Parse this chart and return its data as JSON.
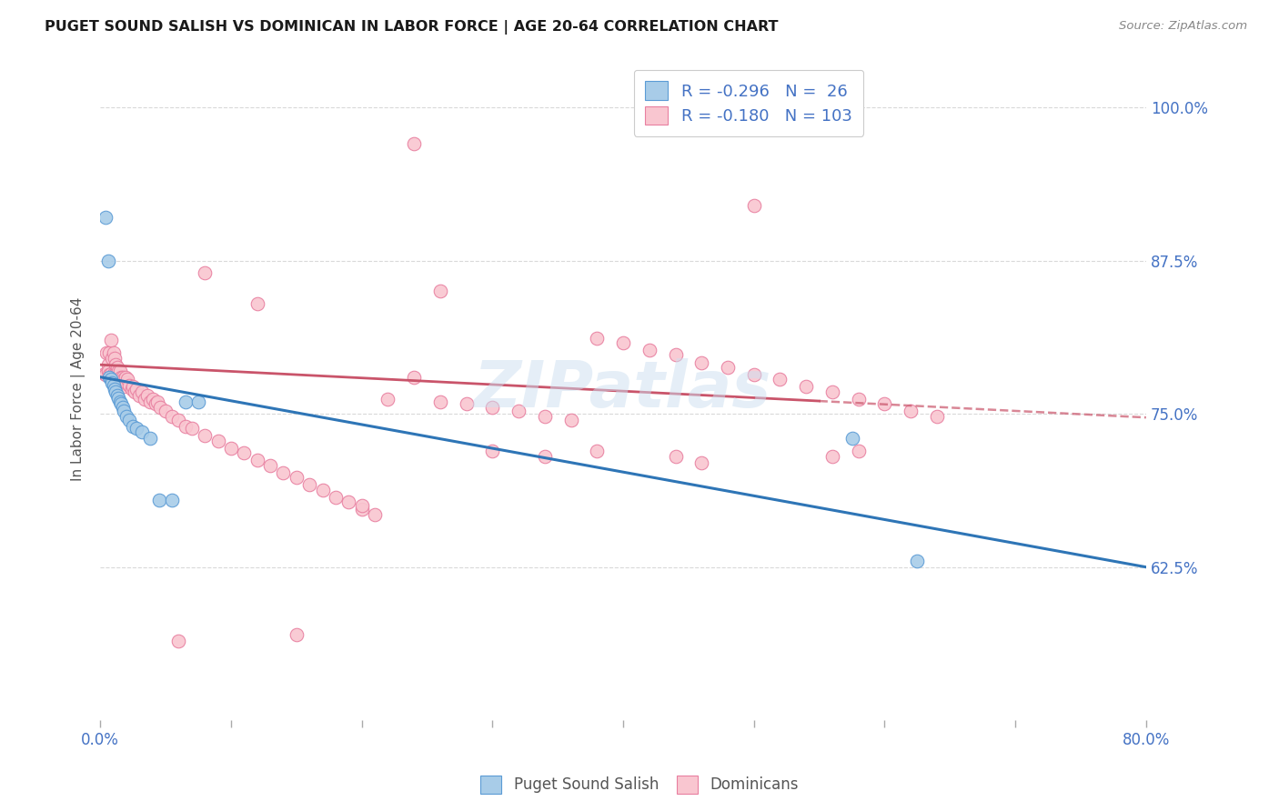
{
  "title": "PUGET SOUND SALISH VS DOMINICAN IN LABOR FORCE | AGE 20-64 CORRELATION CHART",
  "source": "Source: ZipAtlas.com",
  "ylabel": "In Labor Force | Age 20-64",
  "xlim": [
    0.0,
    0.8
  ],
  "ylim": [
    0.5,
    1.04
  ],
  "yticks": [
    0.625,
    0.75,
    0.875,
    1.0
  ],
  "ytick_labels": [
    "62.5%",
    "75.0%",
    "87.5%",
    "100.0%"
  ],
  "xtick_positions": [
    0.0,
    0.1,
    0.2,
    0.3,
    0.4,
    0.5,
    0.6,
    0.7,
    0.8
  ],
  "xtick_labels": [
    "0.0%",
    "",
    "",
    "",
    "",
    "",
    "",
    "",
    "80.0%"
  ],
  "blue_color": "#a8cce8",
  "blue_edge_color": "#5b9bd5",
  "pink_color": "#f9c6d0",
  "pink_edge_color": "#e87fa0",
  "trend_blue_color": "#2e75b6",
  "trend_pink_color": "#c9546a",
  "axis_color": "#4472c4",
  "grid_color": "#d0d0d0",
  "watermark_color": "#ccdff0",
  "title_color": "#1a1a1a",
  "source_color": "#888888",
  "ylabel_color": "#555555",
  "legend_text_color": "#4472c4",
  "bottom_legend_color": "#555555",
  "blue_x": [
    0.004,
    0.006,
    0.007,
    0.008,
    0.009,
    0.01,
    0.011,
    0.012,
    0.013,
    0.014,
    0.015,
    0.016,
    0.017,
    0.018,
    0.02,
    0.022,
    0.025,
    0.028,
    0.032,
    0.038,
    0.045,
    0.055,
    0.065,
    0.075,
    0.575,
    0.625
  ],
  "blue_y": [
    0.91,
    0.875,
    0.78,
    0.778,
    0.775,
    0.773,
    0.77,
    0.768,
    0.765,
    0.763,
    0.76,
    0.758,
    0.755,
    0.752,
    0.748,
    0.745,
    0.74,
    0.738,
    0.735,
    0.73,
    0.68,
    0.68,
    0.76,
    0.76,
    0.73,
    0.63
  ],
  "pink_x": [
    0.003,
    0.004,
    0.005,
    0.006,
    0.006,
    0.007,
    0.007,
    0.008,
    0.008,
    0.009,
    0.009,
    0.01,
    0.01,
    0.011,
    0.011,
    0.012,
    0.012,
    0.013,
    0.013,
    0.014,
    0.014,
    0.015,
    0.015,
    0.016,
    0.016,
    0.017,
    0.017,
    0.018,
    0.018,
    0.019,
    0.02,
    0.021,
    0.022,
    0.024,
    0.025,
    0.026,
    0.028,
    0.03,
    0.032,
    0.034,
    0.036,
    0.038,
    0.04,
    0.042,
    0.044,
    0.046,
    0.05,
    0.055,
    0.06,
    0.065,
    0.07,
    0.08,
    0.09,
    0.1,
    0.11,
    0.12,
    0.13,
    0.14,
    0.15,
    0.16,
    0.17,
    0.18,
    0.19,
    0.2,
    0.21,
    0.22,
    0.24,
    0.26,
    0.28,
    0.3,
    0.32,
    0.34,
    0.36,
    0.38,
    0.4,
    0.42,
    0.44,
    0.46,
    0.48,
    0.5,
    0.52,
    0.54,
    0.56,
    0.58,
    0.6,
    0.62,
    0.64,
    0.24,
    0.5,
    0.15,
    0.3,
    0.44,
    0.06,
    0.2,
    0.38,
    0.56,
    0.26,
    0.08,
    0.12,
    0.34,
    0.46,
    0.58
  ],
  "pink_y": [
    0.783,
    0.782,
    0.8,
    0.79,
    0.785,
    0.8,
    0.782,
    0.81,
    0.783,
    0.795,
    0.78,
    0.8,
    0.783,
    0.795,
    0.78,
    0.79,
    0.783,
    0.788,
    0.78,
    0.785,
    0.778,
    0.785,
    0.778,
    0.78,
    0.775,
    0.78,
    0.775,
    0.778,
    0.772,
    0.78,
    0.775,
    0.778,
    0.773,
    0.77,
    0.772,
    0.768,
    0.77,
    0.765,
    0.768,
    0.762,
    0.765,
    0.76,
    0.762,
    0.758,
    0.76,
    0.755,
    0.752,
    0.748,
    0.745,
    0.74,
    0.738,
    0.732,
    0.728,
    0.722,
    0.718,
    0.712,
    0.708,
    0.702,
    0.698,
    0.692,
    0.688,
    0.682,
    0.678,
    0.672,
    0.668,
    0.762,
    0.78,
    0.76,
    0.758,
    0.755,
    0.752,
    0.748,
    0.745,
    0.812,
    0.808,
    0.802,
    0.798,
    0.792,
    0.788,
    0.782,
    0.778,
    0.772,
    0.768,
    0.762,
    0.758,
    0.752,
    0.748,
    0.97,
    0.92,
    0.57,
    0.72,
    0.715,
    0.565,
    0.675,
    0.72,
    0.715,
    0.85,
    0.865,
    0.84,
    0.715,
    0.71,
    0.72
  ]
}
